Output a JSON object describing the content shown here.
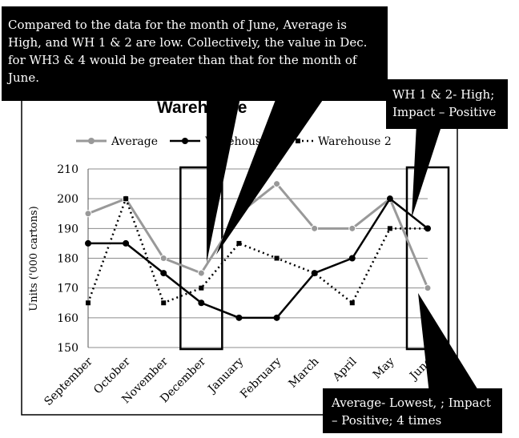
{
  "chart_data": {
    "type": "line",
    "title": "Warehouse",
    "xlabel": "",
    "ylabel": "Units ('000 cartons)",
    "categories": [
      "September",
      "October",
      "November",
      "December",
      "January",
      "February",
      "March",
      "April",
      "May",
      "June"
    ],
    "ylim": [
      150,
      210
    ],
    "yticks": [
      150,
      160,
      170,
      180,
      190,
      200,
      210
    ],
    "grid": true,
    "legend_position": "top",
    "series": [
      {
        "name": "Average",
        "color": "#999999",
        "style": "solid",
        "values": [
          195,
          200,
          180,
          175,
          195,
          205,
          190,
          190,
          200,
          170
        ]
      },
      {
        "name": "Warehouse 1",
        "color": "#000000",
        "style": "solid",
        "values": [
          185,
          185,
          175,
          165,
          160,
          160,
          175,
          180,
          200,
          190
        ]
      },
      {
        "name": "Warehouse 2",
        "color": "#000000",
        "style": "dotted",
        "values": [
          165,
          200,
          165,
          170,
          185,
          180,
          175,
          165,
          190,
          190
        ]
      }
    ],
    "highlight_boxes": [
      "December",
      "June"
    ]
  },
  "callouts": {
    "top": "Compared to the data for the month of June, Average is High, and WH 1 & 2 are low. Collectively, the value in Dec. for WH3 & 4 would be greater than that for the month of June.",
    "right": "WH 1 & 2- High; Impact – Positive",
    "bottom": "Average- Lowest, ; Impact – Positive; 4 times"
  }
}
